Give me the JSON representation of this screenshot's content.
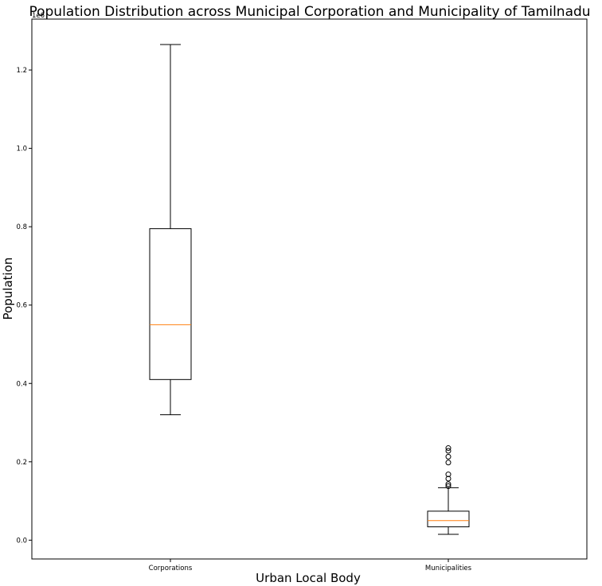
{
  "chart_data": {
    "type": "boxplot",
    "title": "Population Distribution across Municipal Corporation and Municipality of Tamilnadu",
    "xlabel": "Urban Local Body",
    "ylabel": "Population",
    "y_offset_label": "1e6",
    "ylim": [
      -0.048,
      1.33
    ],
    "yticks": [
      "0.0",
      "0.2",
      "0.4",
      "0.6",
      "0.8",
      "1.0",
      "1.2"
    ],
    "categories": [
      "Corporations",
      "Municipalities"
    ],
    "boxes": [
      {
        "category": "Corporations",
        "whisker_low": 0.32,
        "q1": 0.41,
        "median": 0.55,
        "q3": 0.795,
        "whisker_high": 1.265,
        "outliers": []
      },
      {
        "category": "Municipalities",
        "whisker_low": 0.015,
        "q1": 0.034,
        "median": 0.05,
        "q3": 0.074,
        "whisker_high": 0.134,
        "outliers": [
          0.138,
          0.143,
          0.157,
          0.168,
          0.198,
          0.213,
          0.228,
          0.235
        ]
      }
    ],
    "colors": {
      "box": "#000000",
      "median": "#ff7f0e",
      "outlier": "#000000"
    },
    "grid": false,
    "legend": "none"
  }
}
